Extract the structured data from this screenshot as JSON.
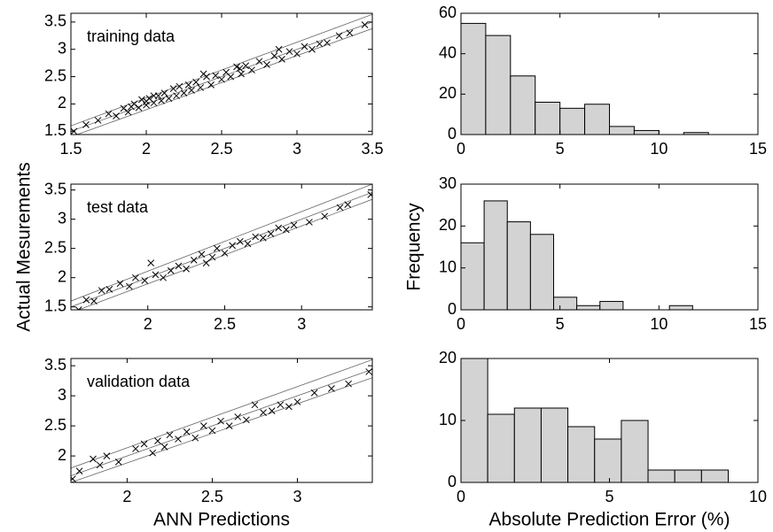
{
  "chart_data": [
    {
      "type": "scatter",
      "annotation": "training data",
      "color": "#000000",
      "x": [
        1.52,
        1.6,
        1.68,
        1.75,
        1.8,
        1.85,
        1.88,
        1.92,
        1.95,
        1.97,
        2.0,
        2.02,
        2.05,
        2.08,
        2.1,
        2.12,
        2.15,
        2.18,
        2.2,
        2.22,
        2.25,
        2.28,
        2.3,
        2.33,
        2.36,
        2.4,
        2.43,
        2.46,
        2.5,
        2.53,
        2.56,
        2.6,
        2.63,
        2.66,
        2.7,
        2.75,
        2.8,
        2.85,
        2.9,
        2.95,
        3.0,
        3.05,
        3.1,
        3.15,
        3.2,
        3.28,
        3.35,
        3.45,
        2.38,
        2.05,
        1.9,
        2.62,
        2.88,
        2.0
      ],
      "values": [
        1.5,
        1.62,
        1.7,
        1.82,
        1.78,
        1.92,
        1.85,
        2.0,
        1.93,
        2.08,
        1.98,
        2.1,
        2.02,
        2.15,
        2.06,
        2.2,
        2.1,
        2.28,
        2.15,
        2.32,
        2.2,
        2.35,
        2.25,
        2.4,
        2.3,
        2.5,
        2.35,
        2.52,
        2.45,
        2.58,
        2.5,
        2.68,
        2.55,
        2.7,
        2.62,
        2.78,
        2.72,
        2.88,
        2.82,
        2.96,
        2.92,
        3.05,
        3.0,
        3.1,
        3.12,
        3.25,
        3.3,
        3.45,
        2.55,
        2.15,
        1.95,
        2.65,
        3.0,
        2.05
      ],
      "reference_lines": [
        {
          "x": [
            1.5,
            3.5
          ],
          "y": [
            1.5,
            3.5
          ]
        },
        {
          "x": [
            1.5,
            3.5
          ],
          "y": [
            1.6,
            3.64
          ]
        },
        {
          "x": [
            1.5,
            3.5
          ],
          "y": [
            1.4,
            3.38
          ]
        }
      ],
      "xlim": [
        1.5,
        3.5
      ],
      "xticks": [
        1.5,
        2,
        2.5,
        3,
        3.5
      ],
      "ylim": [
        1.44,
        3.66
      ],
      "yticks": [
        1.5,
        2,
        2.5,
        3,
        3.5
      ]
    },
    {
      "type": "histogram",
      "color": "#d3d3d3",
      "bins": [
        0,
        1.25,
        2.5,
        3.75,
        5,
        6.25,
        7.5,
        8.75,
        10,
        11.25,
        12.5
      ],
      "values": [
        55,
        49,
        29,
        16,
        13,
        15,
        4,
        2,
        0,
        1
      ],
      "xlim": [
        0,
        15
      ],
      "xticks": [
        0,
        5,
        10,
        15
      ],
      "ylim": [
        0,
        60
      ],
      "yticks": [
        0,
        20,
        40,
        60
      ]
    },
    {
      "type": "scatter",
      "annotation": "test data",
      "ylabel": "Actual Mesurements",
      "color": "#000000",
      "x": [
        1.55,
        1.6,
        1.65,
        1.7,
        1.75,
        1.82,
        1.88,
        1.92,
        1.98,
        2.02,
        2.05,
        2.1,
        2.15,
        2.2,
        2.25,
        2.3,
        2.35,
        2.38,
        2.42,
        2.45,
        2.5,
        2.55,
        2.6,
        2.65,
        2.7,
        2.75,
        2.8,
        2.85,
        2.9,
        2.95,
        3.05,
        3.15,
        3.25,
        3.3,
        3.45
      ],
      "values": [
        1.45,
        1.62,
        1.6,
        1.78,
        1.8,
        1.9,
        1.85,
        2.0,
        1.95,
        2.25,
        2.05,
        2.0,
        2.12,
        2.2,
        2.15,
        2.3,
        2.4,
        2.25,
        2.35,
        2.5,
        2.42,
        2.55,
        2.62,
        2.58,
        2.7,
        2.68,
        2.75,
        2.85,
        2.82,
        2.9,
        2.95,
        3.05,
        3.2,
        3.25,
        3.42
      ],
      "reference_lines": [
        {
          "x": [
            1.5,
            3.46
          ],
          "y": [
            1.5,
            3.46
          ]
        },
        {
          "x": [
            1.5,
            3.46
          ],
          "y": [
            1.6,
            3.6
          ]
        },
        {
          "x": [
            1.5,
            3.46
          ],
          "y": [
            1.4,
            3.34
          ]
        }
      ],
      "xlim": [
        1.5,
        3.46
      ],
      "xticks": [
        2,
        2.5,
        3
      ],
      "ylim": [
        1.45,
        3.6
      ],
      "yticks": [
        1.5,
        2,
        2.5,
        3,
        3.5
      ]
    },
    {
      "type": "histogram",
      "color": "#d3d3d3",
      "ylabel": "Frequency",
      "bins": [
        0,
        1.17,
        2.34,
        3.51,
        4.68,
        5.85,
        7.02,
        8.19,
        9.36,
        10.53,
        11.7
      ],
      "values": [
        16,
        26,
        21,
        18,
        3,
        1,
        2,
        0,
        0,
        1
      ],
      "xlim": [
        0,
        15
      ],
      "xticks": [
        0,
        5,
        10,
        15
      ],
      "ylim": [
        0,
        30
      ],
      "yticks": [
        0,
        10,
        20,
        30
      ]
    },
    {
      "type": "scatter",
      "annotation": "validation data",
      "xlabel": "ANN Predictions",
      "color": "#000000",
      "x": [
        1.68,
        1.72,
        1.8,
        1.84,
        1.88,
        1.95,
        2.05,
        2.1,
        2.15,
        2.18,
        2.22,
        2.25,
        2.3,
        2.35,
        2.4,
        2.45,
        2.5,
        2.55,
        2.6,
        2.65,
        2.7,
        2.75,
        2.8,
        2.85,
        2.9,
        2.95,
        3.0,
        3.1,
        3.2,
        3.3,
        3.42
      ],
      "values": [
        1.62,
        1.75,
        1.95,
        1.85,
        2.0,
        1.9,
        2.12,
        2.2,
        2.05,
        2.25,
        2.15,
        2.35,
        2.28,
        2.4,
        2.3,
        2.5,
        2.42,
        2.58,
        2.5,
        2.65,
        2.6,
        2.85,
        2.72,
        2.75,
        2.85,
        2.82,
        2.9,
        3.05,
        3.12,
        3.2,
        3.4
      ],
      "reference_lines": [
        {
          "x": [
            1.67,
            3.44
          ],
          "y": [
            1.67,
            3.44
          ]
        },
        {
          "x": [
            1.67,
            3.44
          ],
          "y": [
            1.8,
            3.6
          ]
        },
        {
          "x": [
            1.67,
            3.44
          ],
          "y": [
            1.56,
            3.3
          ]
        }
      ],
      "xlim": [
        1.67,
        3.44
      ],
      "xticks": [
        2,
        2.5,
        3
      ],
      "ylim": [
        1.56,
        3.62
      ],
      "yticks": [
        2,
        2.5,
        3,
        3.5
      ]
    },
    {
      "type": "histogram",
      "color": "#d3d3d3",
      "xlabel": "Absolute Prediction Error (%)",
      "bins": [
        0,
        0.9,
        1.8,
        2.7,
        3.6,
        4.5,
        5.4,
        6.3,
        7.2,
        8.1,
        9.0
      ],
      "values": [
        20,
        11,
        12,
        12,
        9,
        7,
        10,
        2,
        2,
        2
      ],
      "xlim": [
        0,
        10
      ],
      "xticks": [
        0,
        5,
        10
      ],
      "ylim": [
        0,
        20
      ],
      "yticks": [
        0,
        10,
        20
      ]
    }
  ]
}
